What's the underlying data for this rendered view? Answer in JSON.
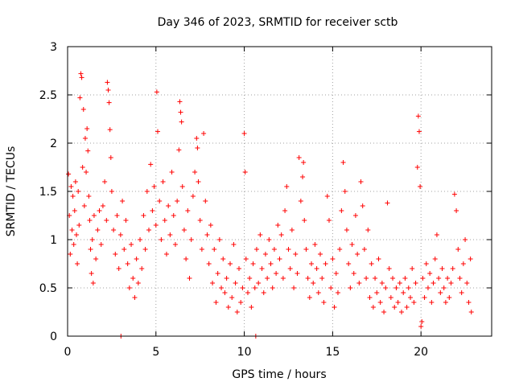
{
  "chart_data": {
    "type": "scatter",
    "title": "Day 346 of 2023, SRMTID for receiver sctb",
    "xlabel": "GPS time / hours",
    "ylabel": "SRMTID / TECUs",
    "xlim": [
      0,
      24
    ],
    "ylim": [
      0,
      3
    ],
    "xticks": [
      0,
      5,
      10,
      15,
      20
    ],
    "xtick_labels": [
      "0",
      "5",
      "10",
      "15",
      "20"
    ],
    "yticks": [
      0,
      0.5,
      1,
      1.5,
      2,
      2.5,
      3
    ],
    "ytick_labels": [
      "0",
      "0.5",
      "1",
      "1.5",
      "2",
      "2.5",
      "3"
    ],
    "grid": true,
    "marker": "+",
    "color": "#ff0000",
    "series": [
      {
        "name": "SRMTID",
        "points": [
          [
            0.05,
            1.68
          ],
          [
            0.1,
            1.25
          ],
          [
            0.15,
            0.85
          ],
          [
            0.2,
            1.55
          ],
          [
            0.25,
            1.1
          ],
          [
            0.3,
            1.45
          ],
          [
            0.35,
            0.95
          ],
          [
            0.4,
            1.3
          ],
          [
            0.45,
            1.6
          ],
          [
            0.5,
            1.05
          ],
          [
            0.55,
            0.75
          ],
          [
            0.6,
            1.5
          ],
          [
            0.65,
            1.15
          ],
          [
            0.7,
            2.47
          ],
          [
            0.75,
            2.72
          ],
          [
            0.8,
            2.68
          ],
          [
            0.85,
            1.75
          ],
          [
            0.9,
            2.35
          ],
          [
            0.95,
            1.35
          ],
          [
            1.0,
            2.05
          ],
          [
            1.05,
            1.7
          ],
          [
            1.1,
            2.15
          ],
          [
            1.15,
            1.92
          ],
          [
            1.2,
            1.45
          ],
          [
            1.25,
            1.2
          ],
          [
            1.3,
            0.9
          ],
          [
            1.35,
            0.65
          ],
          [
            1.4,
            1.0
          ],
          [
            1.45,
            0.55
          ],
          [
            1.5,
            1.25
          ],
          [
            1.6,
            0.8
          ],
          [
            1.7,
            1.1
          ],
          [
            1.8,
            1.3
          ],
          [
            1.9,
            0.95
          ],
          [
            2.0,
            1.35
          ],
          [
            2.1,
            1.6
          ],
          [
            2.2,
            1.2
          ],
          [
            2.25,
            2.63
          ],
          [
            2.3,
            2.55
          ],
          [
            2.35,
            2.42
          ],
          [
            2.4,
            2.14
          ],
          [
            2.45,
            1.85
          ],
          [
            2.5,
            1.5
          ],
          [
            2.6,
            1.1
          ],
          [
            2.7,
            0.85
          ],
          [
            2.8,
            1.25
          ],
          [
            2.9,
            0.7
          ],
          [
            3.0,
            1.05
          ],
          [
            3.02,
            0.0
          ],
          [
            3.1,
            1.4
          ],
          [
            3.2,
            0.9
          ],
          [
            3.3,
            1.2
          ],
          [
            3.4,
            0.75
          ],
          [
            3.5,
            0.5
          ],
          [
            3.6,
            0.95
          ],
          [
            3.7,
            0.6
          ],
          [
            3.8,
            0.4
          ],
          [
            3.9,
            0.8
          ],
          [
            4.0,
            0.55
          ],
          [
            4.1,
            1.0
          ],
          [
            4.2,
            0.7
          ],
          [
            4.3,
            1.25
          ],
          [
            4.4,
            0.9
          ],
          [
            4.5,
            1.5
          ],
          [
            4.6,
            1.1
          ],
          [
            4.7,
            1.78
          ],
          [
            4.8,
            1.3
          ],
          [
            4.9,
            1.55
          ],
          [
            5.0,
            1.15
          ],
          [
            5.05,
            2.53
          ],
          [
            5.1,
            2.12
          ],
          [
            5.2,
            1.4
          ],
          [
            5.3,
            1.0
          ],
          [
            5.4,
            1.6
          ],
          [
            5.5,
            1.2
          ],
          [
            5.6,
            0.85
          ],
          [
            5.7,
            1.35
          ],
          [
            5.8,
            1.05
          ],
          [
            5.9,
            1.7
          ],
          [
            6.0,
            1.25
          ],
          [
            6.1,
            0.95
          ],
          [
            6.2,
            1.4
          ],
          [
            6.3,
            1.93
          ],
          [
            6.35,
            2.43
          ],
          [
            6.4,
            2.32
          ],
          [
            6.45,
            2.22
          ],
          [
            6.5,
            1.55
          ],
          [
            6.6,
            1.1
          ],
          [
            6.7,
            0.8
          ],
          [
            6.8,
            1.3
          ],
          [
            6.9,
            0.6
          ],
          [
            7.0,
            1.0
          ],
          [
            7.1,
            1.45
          ],
          [
            7.2,
            1.7
          ],
          [
            7.3,
            2.05
          ],
          [
            7.35,
            1.95
          ],
          [
            7.4,
            1.6
          ],
          [
            7.5,
            1.2
          ],
          [
            7.6,
            0.9
          ],
          [
            7.7,
            2.1
          ],
          [
            7.8,
            1.4
          ],
          [
            7.9,
            1.05
          ],
          [
            8.0,
            0.75
          ],
          [
            8.1,
            1.15
          ],
          [
            8.2,
            0.55
          ],
          [
            8.3,
            0.9
          ],
          [
            8.4,
            0.35
          ],
          [
            8.5,
            0.65
          ],
          [
            8.6,
            1.0
          ],
          [
            8.7,
            0.5
          ],
          [
            8.8,
            0.8
          ],
          [
            8.9,
            0.45
          ],
          [
            9.0,
            0.6
          ],
          [
            9.1,
            0.3
          ],
          [
            9.2,
            0.75
          ],
          [
            9.3,
            0.4
          ],
          [
            9.4,
            0.95
          ],
          [
            9.5,
            0.55
          ],
          [
            9.6,
            0.25
          ],
          [
            9.7,
            0.7
          ],
          [
            9.8,
            0.35
          ],
          [
            9.9,
            0.5
          ],
          [
            10.0,
            2.1
          ],
          [
            10.05,
            1.7
          ],
          [
            10.1,
            0.8
          ],
          [
            10.2,
            0.45
          ],
          [
            10.3,
            0.6
          ],
          [
            10.4,
            0.3
          ],
          [
            10.5,
            0.75
          ],
          [
            10.6,
            0.5
          ],
          [
            10.65,
            0.0
          ],
          [
            10.7,
            0.9
          ],
          [
            10.8,
            0.55
          ],
          [
            10.9,
            1.05
          ],
          [
            11.0,
            0.7
          ],
          [
            11.1,
            0.45
          ],
          [
            11.2,
            0.85
          ],
          [
            11.3,
            0.6
          ],
          [
            11.4,
            1.0
          ],
          [
            11.5,
            0.75
          ],
          [
            11.6,
            0.5
          ],
          [
            11.7,
            0.9
          ],
          [
            11.8,
            0.65
          ],
          [
            11.9,
            1.15
          ],
          [
            12.0,
            0.8
          ],
          [
            12.1,
            1.05
          ],
          [
            12.2,
            0.6
          ],
          [
            12.3,
            1.3
          ],
          [
            12.4,
            1.55
          ],
          [
            12.5,
            0.9
          ],
          [
            12.6,
            0.7
          ],
          [
            12.7,
            1.1
          ],
          [
            12.8,
            0.5
          ],
          [
            12.9,
            0.85
          ],
          [
            13.0,
            0.65
          ],
          [
            13.1,
            1.85
          ],
          [
            13.2,
            1.4
          ],
          [
            13.3,
            1.65
          ],
          [
            13.35,
            1.8
          ],
          [
            13.4,
            1.2
          ],
          [
            13.5,
            0.9
          ],
          [
            13.6,
            0.6
          ],
          [
            13.7,
            0.4
          ],
          [
            13.8,
            0.75
          ],
          [
            13.9,
            0.55
          ],
          [
            14.0,
            0.95
          ],
          [
            14.1,
            0.7
          ],
          [
            14.2,
            0.45
          ],
          [
            14.3,
            0.85
          ],
          [
            14.4,
            0.6
          ],
          [
            14.5,
            0.35
          ],
          [
            14.6,
            0.75
          ],
          [
            14.7,
            1.45
          ],
          [
            14.8,
            1.2
          ],
          [
            14.9,
            0.5
          ],
          [
            15.0,
            0.8
          ],
          [
            15.1,
            0.3
          ],
          [
            15.2,
            0.65
          ],
          [
            15.3,
            0.45
          ],
          [
            15.4,
            0.9
          ],
          [
            15.5,
            1.3
          ],
          [
            15.6,
            1.8
          ],
          [
            15.7,
            1.5
          ],
          [
            15.8,
            1.1
          ],
          [
            15.9,
            0.75
          ],
          [
            16.0,
            0.5
          ],
          [
            16.1,
            0.95
          ],
          [
            16.2,
            0.65
          ],
          [
            16.3,
            1.25
          ],
          [
            16.4,
            0.85
          ],
          [
            16.5,
            0.55
          ],
          [
            16.6,
            1.6
          ],
          [
            16.7,
            1.35
          ],
          [
            16.8,
            0.9
          ],
          [
            16.9,
            0.6
          ],
          [
            17.0,
            1.1
          ],
          [
            17.1,
            0.4
          ],
          [
            17.2,
            0.75
          ],
          [
            17.3,
            0.3
          ],
          [
            17.4,
            0.6
          ],
          [
            17.5,
            0.45
          ],
          [
            17.6,
            0.8
          ],
          [
            17.7,
            0.35
          ],
          [
            17.8,
            0.55
          ],
          [
            17.9,
            0.25
          ],
          [
            18.0,
            0.5
          ],
          [
            18.1,
            1.38
          ],
          [
            18.2,
            0.7
          ],
          [
            18.3,
            0.4
          ],
          [
            18.4,
            0.6
          ],
          [
            18.5,
            0.3
          ],
          [
            18.6,
            0.5
          ],
          [
            18.7,
            0.35
          ],
          [
            18.8,
            0.55
          ],
          [
            18.9,
            0.25
          ],
          [
            19.0,
            0.45
          ],
          [
            19.1,
            0.6
          ],
          [
            19.2,
            0.3
          ],
          [
            19.3,
            0.5
          ],
          [
            19.4,
            0.4
          ],
          [
            19.5,
            0.7
          ],
          [
            19.6,
            0.35
          ],
          [
            19.7,
            0.55
          ],
          [
            19.8,
            1.75
          ],
          [
            19.85,
            2.28
          ],
          [
            19.9,
            2.12
          ],
          [
            19.95,
            1.55
          ],
          [
            20.0,
            0.1
          ],
          [
            20.05,
            0.15
          ],
          [
            20.1,
            0.6
          ],
          [
            20.2,
            0.4
          ],
          [
            20.3,
            0.75
          ],
          [
            20.4,
            0.5
          ],
          [
            20.5,
            0.65
          ],
          [
            20.6,
            0.35
          ],
          [
            20.7,
            0.55
          ],
          [
            20.8,
            0.8
          ],
          [
            20.9,
            1.05
          ],
          [
            21.0,
            0.6
          ],
          [
            21.1,
            0.45
          ],
          [
            21.2,
            0.7
          ],
          [
            21.3,
            0.5
          ],
          [
            21.4,
            0.35
          ],
          [
            21.5,
            0.6
          ],
          [
            21.6,
            0.4
          ],
          [
            21.7,
            0.55
          ],
          [
            21.8,
            0.7
          ],
          [
            21.9,
            1.47
          ],
          [
            22.0,
            1.3
          ],
          [
            22.1,
            0.9
          ],
          [
            22.2,
            0.6
          ],
          [
            22.3,
            0.45
          ],
          [
            22.4,
            0.75
          ],
          [
            22.5,
            1.0
          ],
          [
            22.6,
            0.55
          ],
          [
            22.7,
            0.35
          ],
          [
            22.8,
            0.8
          ],
          [
            22.85,
            0.25
          ]
        ]
      }
    ]
  }
}
